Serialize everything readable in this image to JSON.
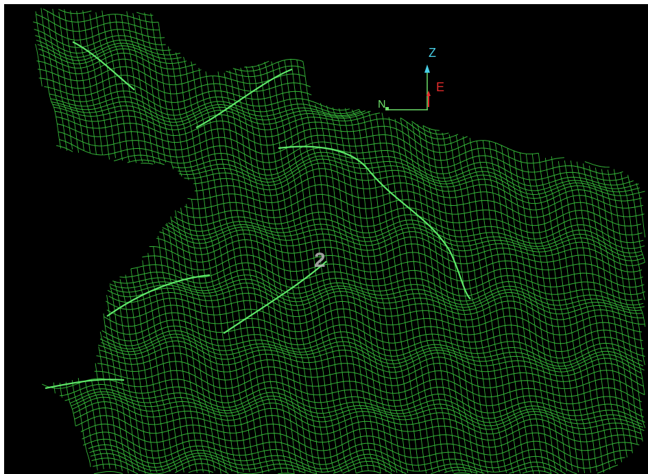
{
  "viewport": {
    "background": "#000000",
    "mesh_color": "#36b93a",
    "ridge_color": "#5fe86a"
  },
  "orientation_gizmo": {
    "z_label": "Z",
    "e_label": "E",
    "n_label": "N",
    "z_color": "#48cfe6",
    "e_color": "#e32b2b",
    "n_color": "#6ee06a"
  },
  "section": {
    "label": "2"
  }
}
